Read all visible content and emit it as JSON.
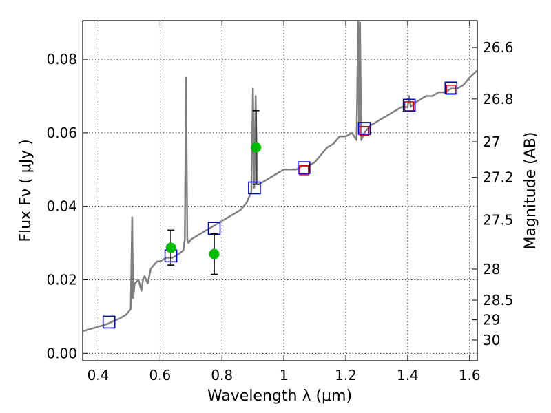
{
  "chart_data": {
    "type": "line",
    "title": "",
    "xlabel": "Wavelength  λ (μm)",
    "ylabel": "Flux  Fν  ( μJy )",
    "y2label": "Magnitude (AB)",
    "xlim": [
      0.35,
      1.625
    ],
    "ylim": [
      -0.002,
      0.0905
    ],
    "grid": true,
    "colors": {
      "spectrum": "#808080",
      "model_box": "#0000cc",
      "observed_box": "#cc0000",
      "photometry": "#00bb00",
      "errorbar": "#000000"
    },
    "xticks": [
      {
        "value": 0.4,
        "label": "0.4"
      },
      {
        "value": 0.6,
        "label": "0.6"
      },
      {
        "value": 0.8,
        "label": "0.8"
      },
      {
        "value": 1.0,
        "label": "1"
      },
      {
        "value": 1.2,
        "label": "1.2"
      },
      {
        "value": 1.4,
        "label": "1.4"
      },
      {
        "value": 1.6,
        "label": "1.6"
      }
    ],
    "yticks": [
      {
        "value": 0.0,
        "label": "0.00"
      },
      {
        "value": 0.02,
        "label": "0.02"
      },
      {
        "value": 0.04,
        "label": "0.04"
      },
      {
        "value": 0.06,
        "label": "0.06"
      },
      {
        "value": 0.08,
        "label": "0.08"
      }
    ],
    "magnitude_ticks": [
      {
        "magnitude": 26.6,
        "label": "26.6"
      },
      {
        "magnitude": 26.8,
        "label": "26.8"
      },
      {
        "magnitude": 27.0,
        "label": "27"
      },
      {
        "magnitude": 27.2,
        "label": "27.2"
      },
      {
        "magnitude": 27.5,
        "label": "27.5"
      },
      {
        "magnitude": 28.0,
        "label": "28"
      },
      {
        "magnitude": 28.5,
        "label": "28.5"
      },
      {
        "magnitude": 29.0,
        "label": "29"
      },
      {
        "magnitude": 30.0,
        "label": "30"
      }
    ],
    "spectrum": {
      "x": [
        0.35,
        0.37,
        0.39,
        0.41,
        0.43,
        0.45,
        0.47,
        0.49,
        0.505,
        0.51,
        0.513,
        0.518,
        0.53,
        0.54,
        0.545,
        0.55,
        0.56,
        0.57,
        0.58,
        0.59,
        0.6,
        0.62,
        0.64,
        0.66,
        0.675,
        0.68,
        0.684,
        0.688,
        0.692,
        0.7,
        0.72,
        0.74,
        0.76,
        0.78,
        0.8,
        0.82,
        0.84,
        0.86,
        0.88,
        0.895,
        0.9,
        0.904,
        0.909,
        0.914,
        0.92,
        0.94,
        0.96,
        0.98,
        1.0,
        1.02,
        1.04,
        1.06,
        1.08,
        1.1,
        1.12,
        1.14,
        1.16,
        1.18,
        1.2,
        1.22,
        1.235,
        1.24,
        1.243,
        1.246,
        1.25,
        1.26,
        1.28,
        1.3,
        1.32,
        1.34,
        1.36,
        1.38,
        1.4,
        1.405,
        1.41,
        1.42,
        1.44,
        1.46,
        1.48,
        1.5,
        1.52,
        1.54,
        1.56,
        1.58,
        1.6,
        1.625
      ],
      "y": [
        0.006,
        0.0065,
        0.007,
        0.0075,
        0.008,
        0.0088,
        0.0095,
        0.0105,
        0.012,
        0.037,
        0.015,
        0.019,
        0.02,
        0.017,
        0.02,
        0.021,
        0.019,
        0.023,
        0.024,
        0.025,
        0.025,
        0.026,
        0.026,
        0.027,
        0.028,
        0.031,
        0.075,
        0.031,
        0.03,
        0.031,
        0.032,
        0.033,
        0.034,
        0.035,
        0.036,
        0.037,
        0.038,
        0.039,
        0.041,
        0.044,
        0.072,
        0.045,
        0.07,
        0.046,
        0.046,
        0.047,
        0.048,
        0.049,
        0.05,
        0.05,
        0.05,
        0.051,
        0.051,
        0.052,
        0.054,
        0.056,
        0.057,
        0.059,
        0.059,
        0.06,
        0.058,
        0.0905,
        0.062,
        0.09,
        0.058,
        0.06,
        0.062,
        0.063,
        0.064,
        0.065,
        0.066,
        0.067,
        0.067,
        0.07,
        0.067,
        0.068,
        0.069,
        0.07,
        0.07,
        0.071,
        0.071,
        0.072,
        0.072,
        0.073,
        0.075,
        0.077
      ]
    },
    "model_boxes": [
      {
        "x": 0.435,
        "y": 0.0085
      },
      {
        "x": 0.635,
        "y": 0.0265
      },
      {
        "x": 0.775,
        "y": 0.034
      },
      {
        "x": 0.905,
        "y": 0.045
      },
      {
        "x": 1.065,
        "y": 0.0505
      },
      {
        "x": 1.26,
        "y": 0.0612
      },
      {
        "x": 1.405,
        "y": 0.0675
      },
      {
        "x": 1.54,
        "y": 0.0722
      }
    ],
    "observed_boxes": [
      {
        "x": 1.065,
        "y": 0.0498
      },
      {
        "x": 1.26,
        "y": 0.0605
      },
      {
        "x": 1.405,
        "y": 0.0672
      },
      {
        "x": 1.54,
        "y": 0.0717
      }
    ],
    "photometry": [
      {
        "x": 0.635,
        "y": 0.0287,
        "yerr_low": 0.0047,
        "yerr_high": 0.0048
      },
      {
        "x": 0.775,
        "y": 0.027,
        "yerr_low": 0.0055,
        "yerr_high": 0.0055
      },
      {
        "x": 0.91,
        "y": 0.056,
        "yerr_low": 0.01,
        "yerr_high": 0.01
      }
    ]
  }
}
